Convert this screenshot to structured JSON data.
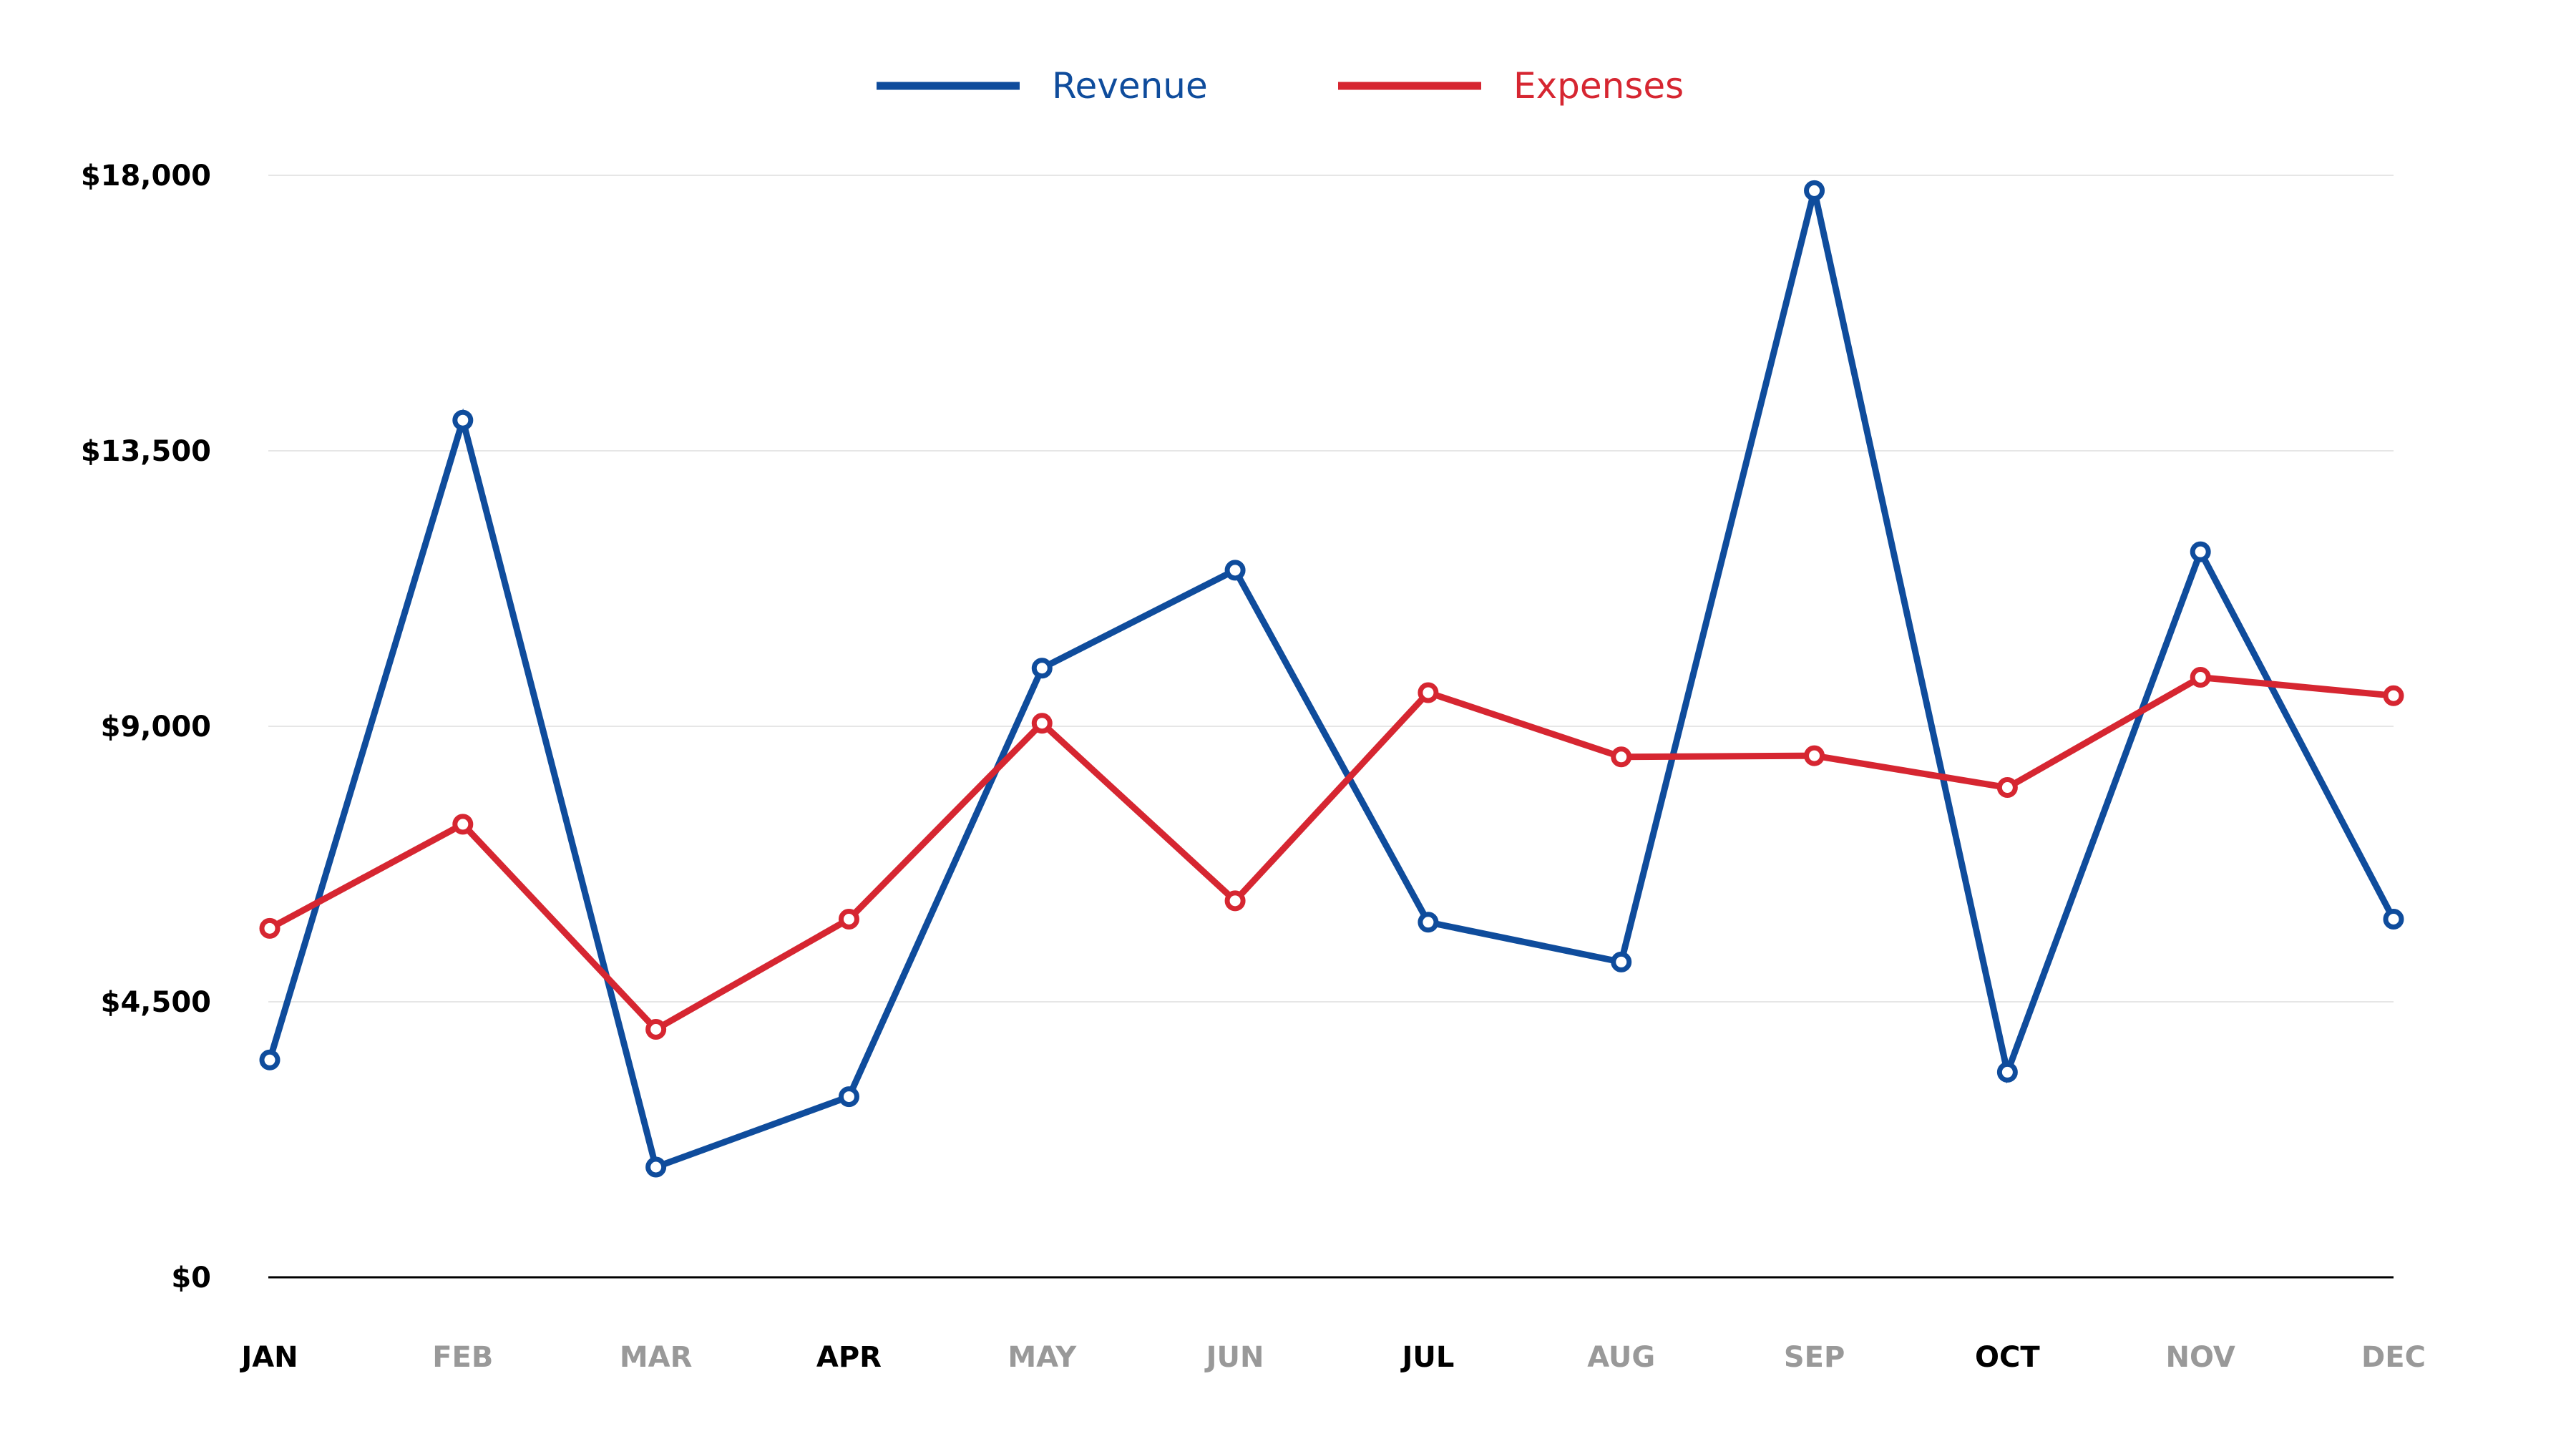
{
  "chart_data": {
    "type": "line",
    "title": "",
    "xlabel": "",
    "ylabel": "",
    "categories": [
      "JAN",
      "FEB",
      "MAR",
      "APR",
      "MAY",
      "JUN",
      "JUL",
      "AUG",
      "SEP",
      "OCT",
      "NOV",
      "DEC"
    ],
    "category_emphasis": [
      "strong",
      "muted",
      "muted",
      "strong",
      "muted",
      "muted",
      "strong",
      "muted",
      "muted",
      "strong",
      "muted",
      "muted"
    ],
    "yticks": [
      0,
      4500,
      9000,
      13500,
      18000
    ],
    "ytick_labels": [
      "$0",
      "$4,500",
      "$9,000",
      "$13,500",
      "$18,000"
    ],
    "ylim": [
      0,
      18000
    ],
    "grid": true,
    "legend_position": "top-center",
    "series": [
      {
        "name": "Revenue",
        "color": "#0f4c9c",
        "values": [
          3550,
          14000,
          1800,
          2950,
          9950,
          11550,
          5800,
          5150,
          17750,
          3350,
          11850,
          5850
        ]
      },
      {
        "name": "Expenses",
        "color": "#d62631",
        "values": [
          5700,
          7400,
          4050,
          5850,
          9050,
          6150,
          9550,
          8500,
          8520,
          8000,
          9800,
          9500
        ]
      }
    ],
    "colors": {
      "strong_tick": "#000000",
      "muted_tick": "#999999",
      "grid": "#e6e6e6",
      "axis": "#000000"
    }
  }
}
